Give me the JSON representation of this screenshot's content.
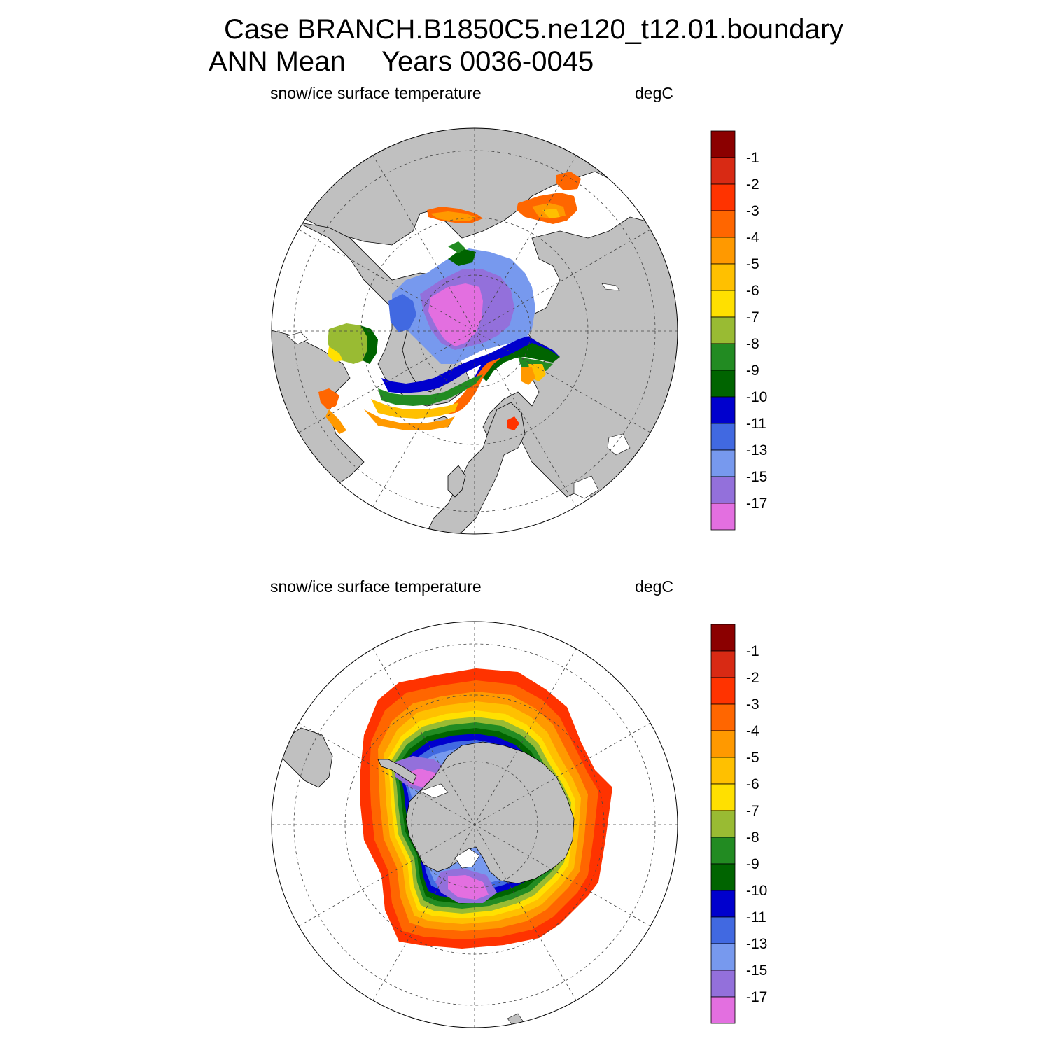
{
  "header": {
    "title_line1": "Case BRANCH.B1850C5.ne120_t12.01.boundary",
    "title_line2_left": "ANN Mean",
    "title_line2_right": "Years 0036-0045"
  },
  "colors": {
    "land": "#c0c0c0",
    "levels": [
      "#8b0000",
      "#d82a14",
      "#ff3300",
      "#ff6600",
      "#ff9900",
      "#ffc000",
      "#ffe000",
      "#99bb33",
      "#228b22",
      "#006400",
      "#0000cd",
      "#4169e1",
      "#7799ee",
      "#9370db",
      "#e36fe0"
    ]
  },
  "colorbar": {
    "labels": [
      "-1",
      "-2",
      "-3",
      "-4",
      "-5",
      "-6",
      "-7",
      "-8",
      "-9",
      "-10",
      "-11",
      "-13",
      "-15",
      "-17"
    ]
  },
  "panels": [
    {
      "id": "north",
      "left_label": "snow/ice surface temperature",
      "right_label": "degC",
      "hemisphere": "Northern Hemisphere"
    },
    {
      "id": "south",
      "left_label": "snow/ice surface temperature",
      "right_label": "degC",
      "hemisphere": "Southern Hemisphere"
    }
  ]
}
